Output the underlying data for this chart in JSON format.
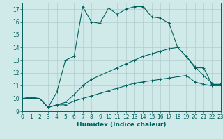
{
  "title": "",
  "xlabel": "Humidex (Indice chaleur)",
  "x_values": [
    0,
    1,
    2,
    3,
    4,
    5,
    6,
    7,
    8,
    9,
    10,
    11,
    12,
    13,
    14,
    15,
    16,
    17,
    18,
    19,
    20,
    21,
    22,
    23
  ],
  "main_line": [
    10.0,
    10.1,
    10.0,
    9.3,
    10.5,
    13.0,
    13.3,
    17.2,
    16.0,
    15.9,
    17.1,
    16.6,
    17.0,
    17.2,
    17.2,
    16.4,
    16.3,
    15.9,
    14.0,
    13.3,
    12.4,
    12.4,
    11.1,
    11.1
  ],
  "line2": [
    10.0,
    10.0,
    10.0,
    9.3,
    9.5,
    9.7,
    10.3,
    11.0,
    11.5,
    11.8,
    12.1,
    12.4,
    12.7,
    13.0,
    13.3,
    13.5,
    13.7,
    13.9,
    14.0,
    13.3,
    12.5,
    11.8,
    11.2,
    11.2
  ],
  "line3": [
    10.0,
    10.0,
    10.0,
    9.3,
    9.5,
    9.5,
    9.8,
    10.0,
    10.2,
    10.4,
    10.6,
    10.8,
    11.0,
    11.2,
    11.3,
    11.4,
    11.5,
    11.6,
    11.7,
    11.8,
    11.3,
    11.1,
    11.0,
    11.0
  ],
  "line_color": "#006060",
  "bg_color": "#d0eaea",
  "grid_color": "#b0cccc",
  "ylim": [
    9,
    17.5
  ],
  "yticks": [
    9,
    10,
    11,
    12,
    13,
    14,
    15,
    16,
    17
  ],
  "xlim": [
    0,
    23
  ],
  "tick_fontsize": 5.5,
  "xlabel_fontsize": 6.5
}
